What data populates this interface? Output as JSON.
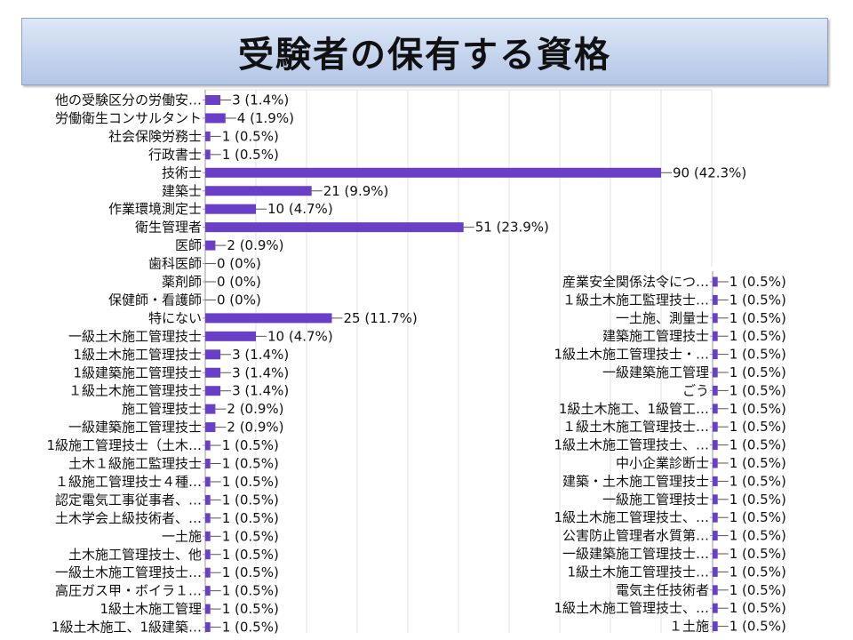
{
  "page": {
    "title": "受験者の保有する資格"
  },
  "chart_data": [
    {
      "type": "bar",
      "orientation": "horizontal",
      "categories": [
        "他の受験区分の労働安…",
        "労働衛生コンサルタント",
        "社会保険労務士",
        "行政書士",
        "技術士",
        "建築士",
        "作業環境測定士",
        "衛生管理者",
        "医師",
        "歯科医師",
        "薬剤師",
        "保健師・看護師",
        "特にない",
        "一級土木施工管理技士",
        "1級土木施工管理技士",
        "1級建築施工管理技士",
        "１級土木施工管理技士",
        "施工管理技士",
        "一級建築施工管理技士",
        "1級施工管理技士（土木…",
        "土木１級施工監理技士",
        "１級施工管理技士４種…",
        "認定電気工事従事者、…",
        "土木学会上級技術者、…",
        "一土施",
        "土木施工管理技士、他",
        "一級土木施工管理技士…",
        "高圧ガス甲・ボイラ１…",
        "1級土木施工管理",
        "1級土木施工、1級建築…"
      ],
      "values": [
        3,
        4,
        1,
        1,
        90,
        21,
        10,
        51,
        2,
        0,
        0,
        0,
        25,
        10,
        3,
        3,
        3,
        2,
        2,
        1,
        1,
        1,
        1,
        1,
        1,
        1,
        1,
        1,
        1,
        1
      ],
      "data_labels": [
        "3 (1.4%)",
        "4 (1.9%)",
        "1 (0.5%)",
        "1 (0.5%)",
        "90 (42.3%)",
        "21 (9.9%)",
        "10 (4.7%)",
        "51 (23.9%)",
        "2 (0.9%)",
        "0 (0%)",
        "0 (0%)",
        "0 (0%)",
        "25 (11.7%)",
        "10 (4.7%)",
        "3 (1.4%)",
        "3 (1.4%)",
        "3 (1.4%)",
        "2 (0.9%)",
        "2 (0.9%)",
        "1 (0.5%)",
        "1 (0.5%)",
        "1 (0.5%)",
        "1 (0.5%)",
        "1 (0.5%)",
        "1 (0.5%)",
        "1 (0.5%)",
        "1 (0.5%)",
        "1 (0.5%)",
        "1 (0.5%)",
        "1 (0.5%)"
      ],
      "xlim": [
        0,
        100
      ],
      "grid": true,
      "bar_color": "#6a3fc8"
    },
    {
      "type": "bar",
      "orientation": "horizontal",
      "categories": [
        "産業安全関係法令につ…",
        "１級土木施工監理技士…",
        "一土施、測量士",
        "建築施工管理技士",
        "1級土木施工管理技士・…",
        "一級建築施工管理",
        "ごう",
        "1級土木施工、1級管工…",
        "１級土木施工管理技士…",
        "1級土木施工管理技士、…",
        "中小企業診断士",
        "建築・土木施工管理技士",
        "一級施工管理技士",
        "1級土木施工管理技士、…",
        "公害防止管理者水質第…",
        "一級建築施工管理技士…",
        "1級土木施工管理技士…",
        "電気主任技術者",
        "1級土木施工管理技士、…",
        "１土施"
      ],
      "values": [
        1,
        1,
        1,
        1,
        1,
        1,
        1,
        1,
        1,
        1,
        1,
        1,
        1,
        1,
        1,
        1,
        1,
        1,
        1,
        1
      ],
      "data_labels": [
        "1 (0.5%)",
        "1 (0.5%)",
        "1 (0.5%)",
        "1 (0.5%)",
        "1 (0.5%)",
        "1 (0.5%)",
        "1 (0.5%)",
        "1 (0.5%)",
        "1 (0.5%)",
        "1 (0.5%)",
        "1 (0.5%)",
        "1 (0.5%)",
        "1 (0.5%)",
        "1 (0.5%)",
        "1 (0.5%)",
        "1 (0.5%)",
        "1 (0.5%)",
        "1 (0.5%)",
        "1 (0.5%)",
        "1 (0.5%)"
      ],
      "bar_color": "#6a3fc8"
    }
  ]
}
